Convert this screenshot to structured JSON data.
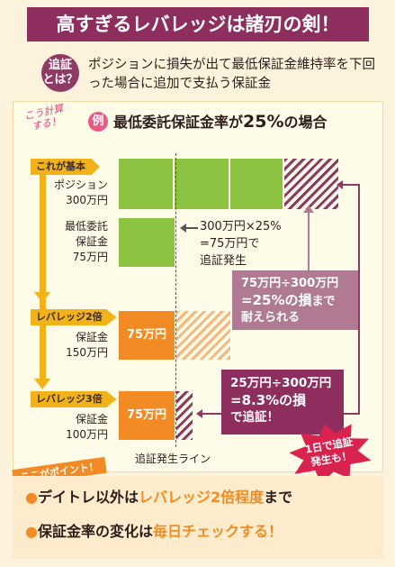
{
  "title": "高すぎるレバレッジは諸刃の剣！",
  "question": {
    "badge_line1": "追証",
    "badge_line2": "とは？",
    "text": "ポジションに損失が出て最低保証金維持率を下回った場合に追加で支払う保証金"
  },
  "example": {
    "side_note_line1": "こう計算",
    "side_note_line2": "する！",
    "badge": "例",
    "title_prefix": "最低委託保証金率が",
    "title_value": "25%",
    "title_suffix": "の場合"
  },
  "rows": {
    "basic": {
      "tag": "これが基本",
      "label_line1": "ポジション",
      "label_line2": "300万円"
    },
    "min_margin": {
      "label_line1": "最低委託",
      "label_line2": "保証金",
      "label_line3": "75万円"
    },
    "lev2": {
      "tag": "レバレッジ2倍",
      "label_line1": "保証金",
      "label_line2": "150万円",
      "bar_text": "75万円"
    },
    "lev3": {
      "tag": "レバレッジ3倍",
      "label_line1": "保証金",
      "label_line2": "100万円",
      "bar_text": "75万円"
    }
  },
  "notes": {
    "calc_line1": "300万円×25%",
    "calc_line2": "=75万円で",
    "calc_line3": "追証発生",
    "lev2_box_line1": "75万円÷300万円",
    "lev2_box_line2a": "=25%の損",
    "lev2_box_line2b": "まで",
    "lev2_box_line3": "耐えられる",
    "lev3_box_line1": "25万円÷300万円",
    "lev3_box_line2": "=8.3%の損",
    "lev3_box_line3": "で追証！",
    "star_line1": "1日で追証",
    "star_line2": "発生も！"
  },
  "trigger_line_label": "追証発生ライン",
  "point_tag": "ここがポイント！",
  "points": [
    {
      "bullet": "●",
      "a": "デイトレ以外は",
      "b": "レバレッジ2倍程度",
      "c": "まで"
    },
    {
      "bullet": "●",
      "a": "保証金率の変化は",
      "b": "毎日チェックする！",
      "c": ""
    }
  ],
  "colors": {
    "title_bg": "#8e2e5f",
    "green": "#8cc341",
    "orange": "#f28b24",
    "purple": "#8e3a64",
    "box_purple": "#b07a93",
    "tag_yellow": "#f2b21a",
    "star_red": "#d9234e"
  }
}
